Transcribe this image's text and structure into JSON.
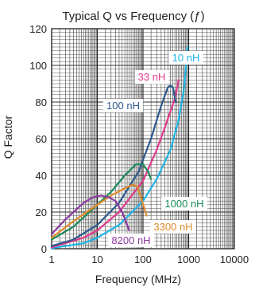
{
  "chart_data": {
    "type": "line",
    "title": "Typical Q vs Frequency (ƒ)",
    "xlabel": "Frequency (MHz)",
    "ylabel": "Q Factor",
    "x_scale": "log",
    "xlim": [
      1,
      10000
    ],
    "ylim": [
      0,
      120
    ],
    "x_ticks": [
      1,
      10,
      100,
      1000,
      10000
    ],
    "y_ticks": [
      0,
      20,
      40,
      60,
      80,
      100,
      120
    ],
    "grid": true,
    "series": [
      {
        "name": "10 nH",
        "color": "#1fb5e6",
        "x": [
          1,
          5,
          10,
          30,
          100,
          200,
          400,
          600,
          800,
          950
        ],
        "y": [
          0.3,
          3,
          6,
          13,
          26,
          38,
          54,
          70,
          88,
          110
        ]
      },
      {
        "name": "33 nH",
        "color": "#e0388c",
        "x": [
          1,
          5,
          10,
          30,
          100,
          200,
          300,
          400,
          500,
          600
        ],
        "y": [
          0.8,
          6,
          10,
          20,
          37,
          54,
          66,
          75,
          82,
          92
        ]
      },
      {
        "name": "100 nH",
        "color": "#2b5a8c",
        "x": [
          1,
          3,
          10,
          30,
          80,
          150,
          250,
          350,
          400,
          450,
          520
        ],
        "y": [
          1.5,
          5,
          13,
          25,
          42,
          60,
          78,
          88,
          89,
          88,
          80
        ]
      },
      {
        "name": "1000 nH",
        "color": "#1a8a5a",
        "x": [
          1,
          3,
          10,
          20,
          40,
          70,
          100,
          130,
          150
        ],
        "y": [
          5,
          12,
          24,
          31,
          40,
          46,
          46,
          42,
          38
        ]
      },
      {
        "name": "3300 nH",
        "color": "#e08a2a",
        "x": [
          1,
          3,
          10,
          20,
          40,
          60,
          75,
          90,
          120
        ],
        "y": [
          6,
          15,
          24,
          29,
          33,
          35,
          34,
          28,
          18
        ]
      },
      {
        "name": "8200 nH",
        "color": "#8a3aa0",
        "x": [
          1,
          2,
          5,
          8,
          12,
          18,
          25,
          35,
          50
        ],
        "y": [
          8,
          16,
          25,
          28,
          29,
          28,
          26,
          20,
          10
        ]
      }
    ],
    "labels": [
      {
        "text": "10 nH",
        "series": "10 nH"
      },
      {
        "text": "33 nH",
        "series": "33 nH"
      },
      {
        "text": "100 nH",
        "series": "100 nH"
      },
      {
        "text": "1000 nH",
        "series": "1000 nH"
      },
      {
        "text": "3300 nH",
        "series": "3300 nH"
      },
      {
        "text": "8200 nH",
        "series": "8200 nH"
      }
    ]
  }
}
